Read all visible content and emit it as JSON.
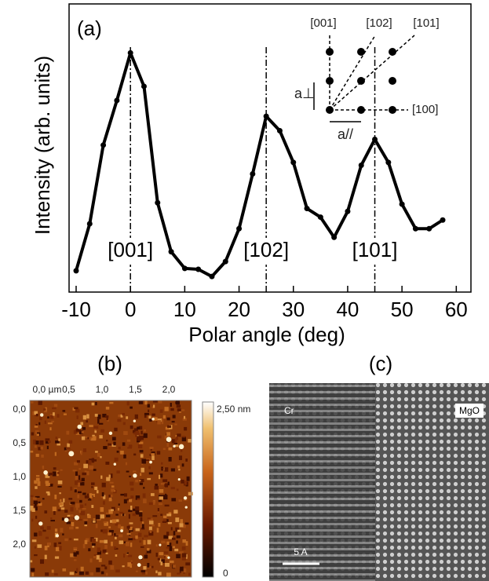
{
  "chart_data": {
    "type": "line",
    "title": "(a)",
    "x_label": "Polar angle (deg)",
    "y_label": "Intensity (arb. units)",
    "x": [
      -10,
      -7.5,
      -5,
      -2.5,
      0,
      2.5,
      5,
      7.5,
      10,
      12.5,
      15,
      17.5,
      20,
      22.5,
      25,
      27.5,
      30,
      32.5,
      35,
      37.5,
      40,
      42.5,
      45,
      47.5,
      50,
      52.5,
      55,
      57.5
    ],
    "series": [
      {
        "color": "#000000",
        "values": [
          0.074,
          0.237,
          0.51,
          0.665,
          0.83,
          0.714,
          0.31,
          0.14,
          0.082,
          0.079,
          0.054,
          0.106,
          0.22,
          0.41,
          0.61,
          0.56,
          0.45,
          0.29,
          0.26,
          0.19,
          0.28,
          0.44,
          0.53,
          0.45,
          0.305,
          0.22,
          0.22,
          0.25
        ]
      }
    ],
    "xlim": [
      -11.3,
      62.7
    ],
    "xticks": [
      -10,
      0,
      10,
      20,
      30,
      40,
      50,
      60
    ],
    "ylim": [
      0,
      1
    ],
    "peaks": [
      {
        "x": 0,
        "label": "[001]"
      },
      {
        "x": 25,
        "label": "[102]"
      },
      {
        "x": 45,
        "label": "[101]"
      }
    ],
    "inset": {
      "dir_001": "[001]",
      "dir_102": "[102]",
      "dir_101": "[101]",
      "dir_100": "[100]",
      "a_perp": "a⊥",
      "a_par": "a//"
    }
  },
  "panels": {
    "b": {
      "label": "(b)",
      "x_labels": [
        "0,0 µm",
        "0,5",
        "1,0",
        "1,5",
        "2,0"
      ],
      "y_labels": [
        "0,0",
        "0,5",
        "1,0",
        "1,5",
        "2,0"
      ],
      "colorbar_max": "2,50 nm",
      "colorbar_min": "0"
    },
    "c": {
      "label": "(c)",
      "left": "Cr",
      "right": "MgO",
      "scale": "5 A"
    }
  }
}
